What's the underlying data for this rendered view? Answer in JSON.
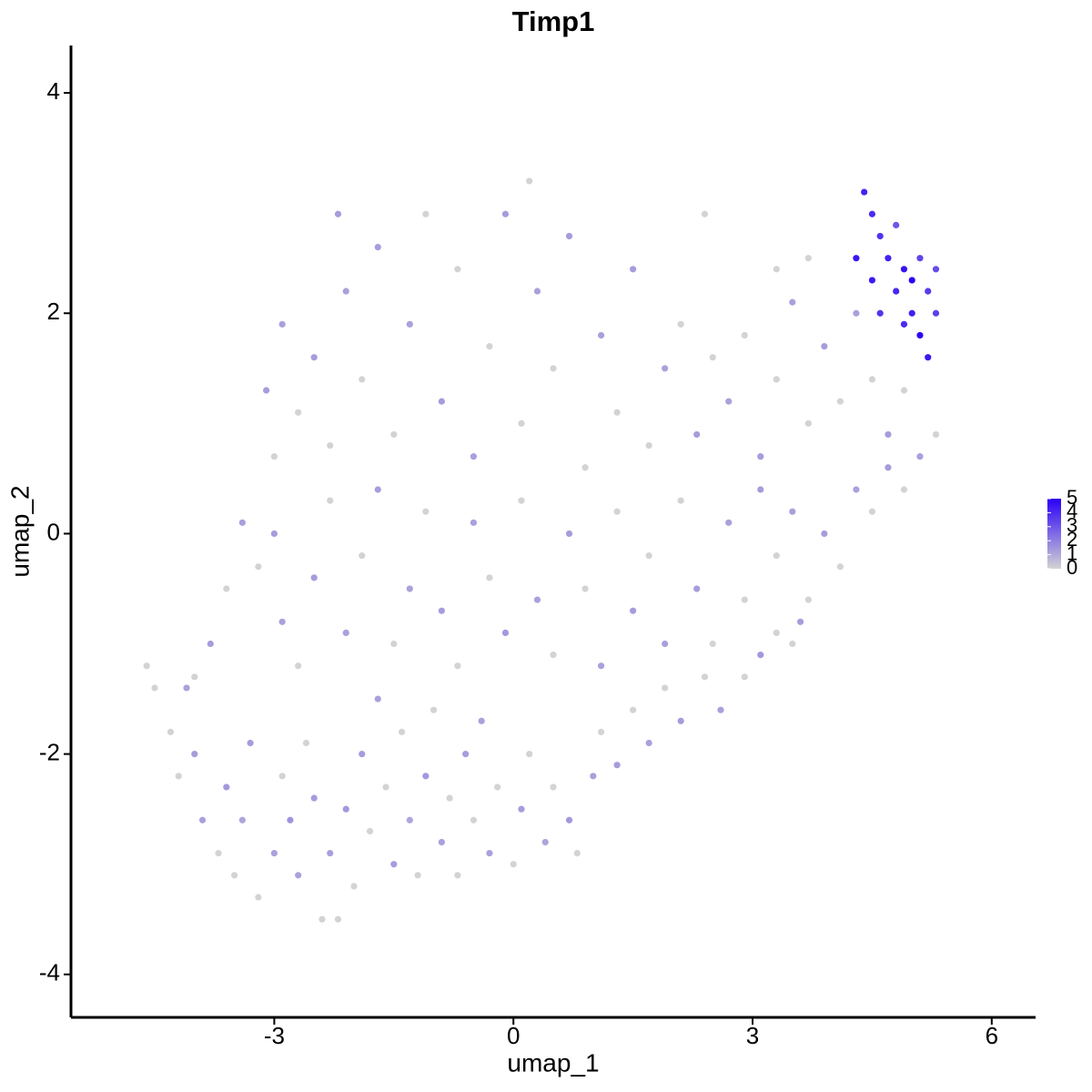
{
  "chart_data": {
    "type": "scatter",
    "title": "Timp1",
    "xlabel": "umap_1",
    "ylabel": "umap_2",
    "xlim": [
      -5.55,
      6.55
    ],
    "ylim": [
      -4.39,
      4.43
    ],
    "xticks": [
      -3,
      0,
      3,
      6
    ],
    "yticks": [
      -4,
      -2,
      0,
      2,
      4
    ],
    "colors": [
      "#d3d3d3",
      "#2b00f7"
    ],
    "colorlim": [
      0,
      5
    ],
    "colorticks": [
      0,
      1,
      2,
      3,
      4,
      5
    ],
    "legend": "right",
    "x": [
      -4.6,
      -4.5,
      -4.3,
      -4.1,
      -4.2,
      -4.0,
      -3.9,
      -3.7,
      -3.6,
      -3.5,
      -3.4,
      -3.3,
      -3.2,
      -3.0,
      -2.9,
      -2.8,
      -2.7,
      -2.6,
      -2.5,
      -2.4,
      -2.3,
      -2.2,
      -2.1,
      -2.0,
      -1.9,
      -1.8,
      -1.7,
      -1.6,
      -1.5,
      -1.4,
      -1.3,
      -1.2,
      -1.1,
      -1.0,
      -0.9,
      -0.8,
      -0.7,
      -0.6,
      -0.5,
      -0.4,
      -0.3,
      -0.2,
      0,
      0.1,
      0.2,
      0.4,
      0.5,
      0.7,
      0.8,
      1.0,
      1.1,
      1.3,
      1.5,
      1.7,
      1.9,
      2.1,
      2.4,
      2.6,
      2.9,
      3.1,
      3.3,
      3.5,
      3.6,
      -4.0,
      -3.8,
      -3.6,
      -3.4,
      -3.2,
      -3.0,
      -2.9,
      -2.7,
      -2.5,
      -2.3,
      -2.1,
      -1.9,
      -1.7,
      -1.5,
      -1.3,
      -1.1,
      -0.9,
      -0.7,
      -0.5,
      -0.3,
      -0.1,
      0.1,
      0.3,
      0.5,
      0.7,
      0.9,
      1.1,
      1.3,
      1.5,
      1.7,
      1.9,
      2.1,
      2.3,
      2.5,
      2.7,
      2.9,
      3.1,
      3.3,
      3.5,
      3.7,
      3.9,
      4.1,
      4.3,
      4.5,
      4.7,
      4.9,
      -3.1,
      -3.0,
      -2.9,
      -2.7,
      -2.5,
      -2.3,
      -2.1,
      -1.9,
      -1.7,
      -1.5,
      -1.3,
      -1.1,
      -0.9,
      -0.7,
      -0.5,
      -0.3,
      -0.1,
      0.1,
      0.3,
      0.5,
      0.7,
      0.9,
      1.1,
      1.3,
      1.5,
      1.7,
      1.9,
      2.1,
      2.3,
      2.5,
      2.7,
      2.9,
      3.1,
      3.3,
      3.5,
      3.7,
      3.9,
      4.1,
      4.3,
      4.5,
      4.7,
      4.9,
      5.1,
      5.3,
      3.3,
      3.7,
      2.4,
      -2.2,
      0.2,
      4.4,
      4.5,
      4.3,
      4.6,
      4.7,
      4.5,
      4.8,
      4.9,
      5.0,
      5.1,
      4.9,
      5.2,
      5.3,
      5.0,
      5.2,
      4.8,
      5.3,
      4.6,
      5.1
    ],
    "y": [
      -1.2,
      -1.4,
      -1.8,
      -1.4,
      -2.2,
      -2.0,
      -2.6,
      -2.9,
      -2.3,
      -3.1,
      -2.6,
      -1.9,
      -3.3,
      -2.9,
      -2.2,
      -2.6,
      -3.1,
      -1.9,
      -2.4,
      -3.5,
      -2.9,
      -3.5,
      -2.5,
      -3.2,
      -2.0,
      -2.7,
      -1.5,
      -2.3,
      -3.0,
      -1.8,
      -2.6,
      -3.1,
      -2.2,
      -1.6,
      -2.8,
      -2.4,
      -3.1,
      -2.0,
      -2.6,
      -1.7,
      -2.9,
      -2.3,
      -3.0,
      -2.5,
      -2.0,
      -2.8,
      -2.3,
      -2.6,
      -2.9,
      -2.2,
      -1.8,
      -2.1,
      -1.6,
      -1.9,
      -1.4,
      -1.7,
      -1.3,
      -1.6,
      -1.3,
      -1.1,
      -0.9,
      -1.0,
      -0.8,
      -1.3,
      -1.0,
      -0.5,
      0.1,
      -0.3,
      0.0,
      -0.8,
      -1.2,
      -0.4,
      0.3,
      -0.9,
      -0.2,
      0.4,
      -1.0,
      -0.5,
      0.2,
      -0.7,
      -1.2,
      0.1,
      -0.4,
      -0.9,
      0.3,
      -0.6,
      -1.1,
      0.0,
      -0.5,
      -1.2,
      0.2,
      -0.7,
      -0.2,
      -1.0,
      0.3,
      -0.5,
      -1.0,
      0.1,
      -0.6,
      0.4,
      -0.2,
      0.2,
      -0.6,
      0.0,
      -0.3,
      0.4,
      0.2,
      0.6,
      0.4,
      1.3,
      0.7,
      1.9,
      1.1,
      1.6,
      0.8,
      2.2,
      1.4,
      2.6,
      0.9,
      1.9,
      2.9,
      1.2,
      2.4,
      0.7,
      1.7,
      2.9,
      1.0,
      2.2,
      1.5,
      2.7,
      0.6,
      1.8,
      1.1,
      2.4,
      0.8,
      1.5,
      1.9,
      0.9,
      1.6,
      1.2,
      1.8,
      0.7,
      1.4,
      2.1,
      1.0,
      1.7,
      1.2,
      2.0,
      1.4,
      0.9,
      1.3,
      0.7,
      0.9,
      2.4,
      2.5,
      2.9,
      2.9,
      3.2,
      3.1,
      2.9,
      2.5,
      2.7,
      2.5,
      2.3,
      2.2,
      2.4,
      2.0,
      1.8,
      1.9,
      2.2,
      2.0,
      2.3,
      1.6,
      2.8,
      2.4,
      2.0,
      2.5
    ],
    "values": [
      0,
      0,
      0,
      1.2,
      0,
      1.3,
      1.2,
      0,
      1.4,
      0,
      1.1,
      1.3,
      0,
      1.2,
      0,
      1.5,
      1.2,
      0,
      1.3,
      0,
      1.2,
      0,
      1.4,
      0,
      1.3,
      0,
      1.2,
      0,
      1.3,
      0,
      1.1,
      0,
      1.4,
      0,
      1.2,
      0,
      0,
      1.3,
      0,
      1.2,
      1.2,
      0,
      0,
      1.3,
      0,
      1.1,
      0,
      1.4,
      0,
      1.2,
      0,
      1.3,
      0,
      1.2,
      0,
      1.3,
      0,
      1.2,
      0,
      1.4,
      0,
      0,
      1.3,
      0,
      1.3,
      0,
      1.2,
      0,
      1.3,
      1.2,
      0,
      1.3,
      0,
      1.2,
      0,
      1.3,
      0,
      1.2,
      0,
      1.3,
      0,
      1.2,
      0,
      1.4,
      0,
      1.2,
      0,
      1.3,
      0,
      1.2,
      0,
      1.3,
      0,
      1.2,
      0,
      1.3,
      0,
      1.2,
      0,
      1.3,
      0,
      1.2,
      0,
      1.3,
      0,
      1.2,
      0,
      1.3,
      0,
      1.3,
      0,
      1.2,
      0,
      1.3,
      0,
      1.2,
      0,
      1.3,
      0,
      1.2,
      0,
      1.3,
      0,
      1.2,
      0,
      1.3,
      0,
      1.2,
      0,
      1.3,
      0,
      1.2,
      0,
      1.3,
      0,
      1.2,
      0,
      1.3,
      0,
      1.2,
      0,
      1.3,
      0,
      1.2,
      0,
      1.3,
      0,
      1.2,
      0,
      1.3,
      0,
      1.2,
      0,
      0,
      0,
      0,
      1.3,
      0,
      4.2,
      4.0,
      4.5,
      3.8,
      4.2,
      4.4,
      4.1,
      4.6,
      4.3,
      4.9,
      4.0,
      3.6,
      3.5,
      5.0,
      4.5,
      3.0,
      3.2,
      3.8,
      3.4
    ]
  }
}
